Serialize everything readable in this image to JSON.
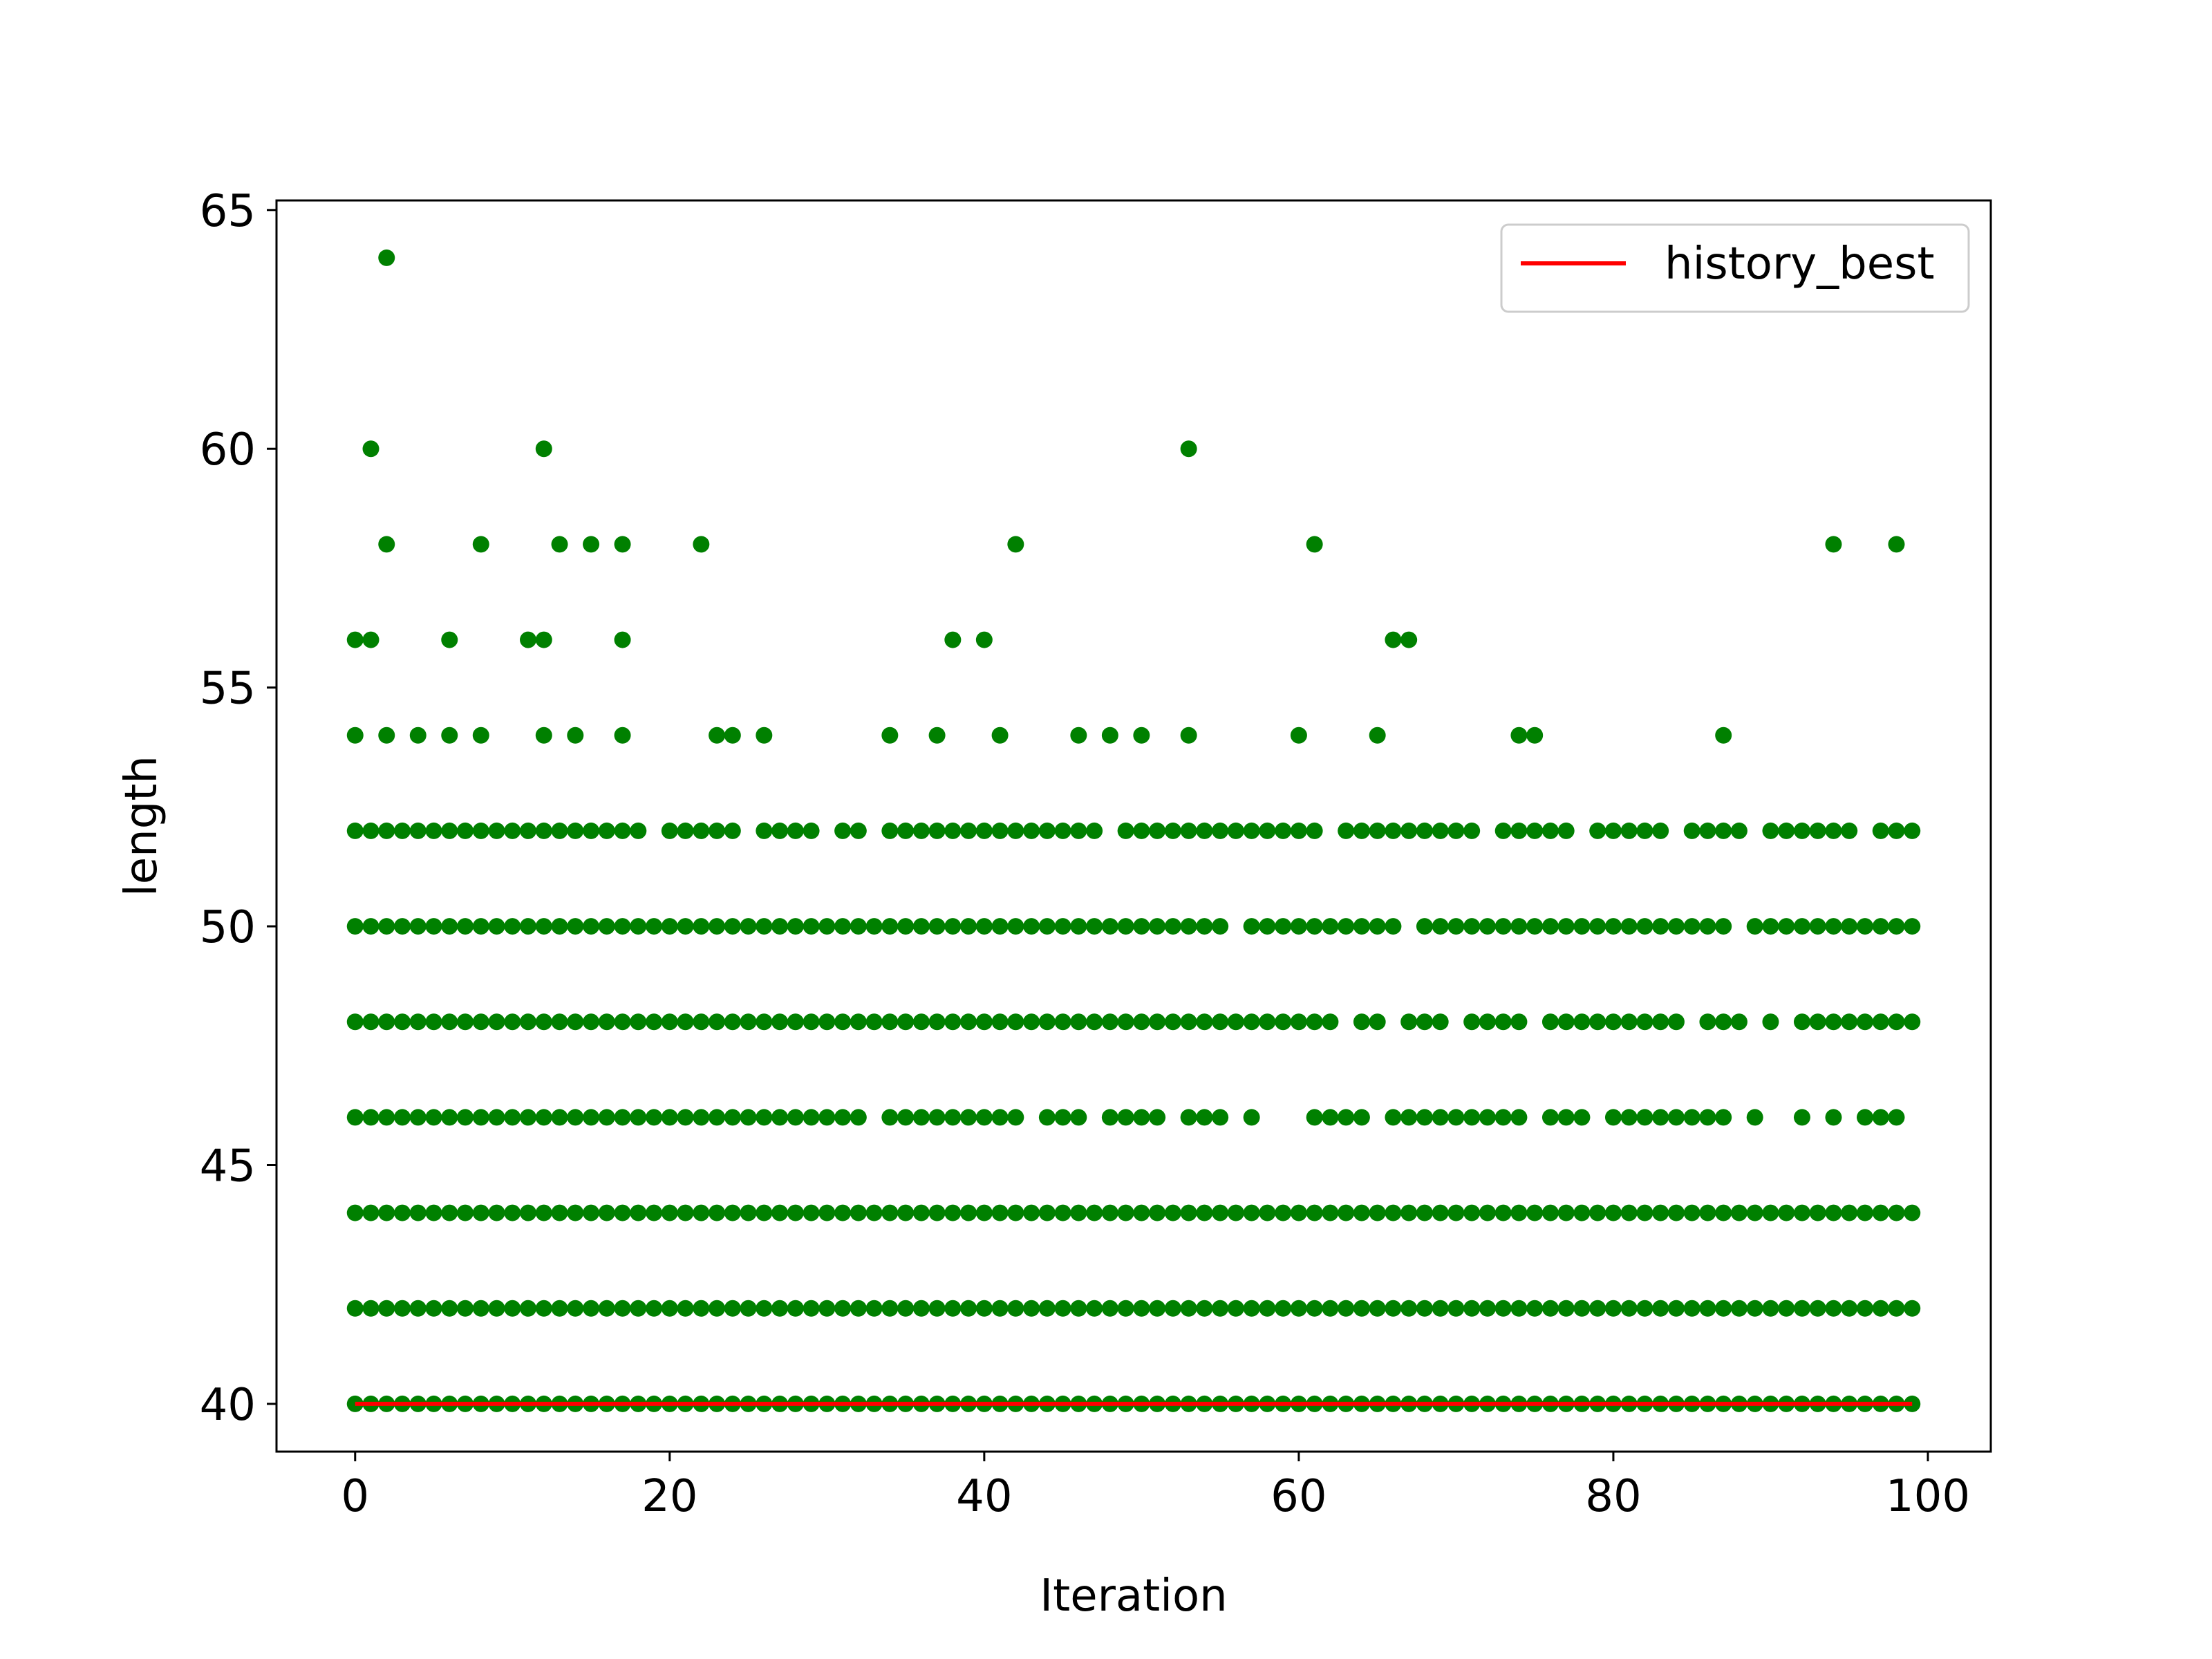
{
  "chart_data": {
    "type": "scatter",
    "title": "",
    "xlabel": "Iteration",
    "ylabel": "length",
    "xlim": [
      -5,
      104
    ],
    "ylim": [
      39.0,
      65.2
    ],
    "xticks": [
      "0",
      "20",
      "40",
      "60",
      "80",
      "100"
    ],
    "yticks": [
      "40",
      "45",
      "50",
      "55",
      "60",
      "65"
    ],
    "grid": false,
    "legend_position": "top-right",
    "legend": [
      {
        "label": "history_best",
        "color": "#ff0000",
        "kind": "line"
      }
    ],
    "series": [
      {
        "name": "history_best",
        "kind": "line",
        "color": "#ff0000",
        "x": [
          0,
          99
        ],
        "y": [
          40,
          40
        ]
      },
      {
        "kind": "scatter",
        "color": "#008000",
        "rows": [
          {
            "y": 40,
            "x": "0-99"
          },
          {
            "y": 42,
            "x": "0-99"
          },
          {
            "y": 44,
            "x": "0-99"
          },
          {
            "y": 46,
            "x": "0-32,34-42,44-46,48-51,53-55,57,61-64,66-74,76-78,80-86,87,89,92,94,96-98"
          },
          {
            "y": 48,
            "x": "0-62,64-65,67-69,71-74,76-84,86-88,90,92-99"
          },
          {
            "y": 50,
            "x": "0-55,57-66,68-87,89-99"
          },
          {
            "y": 52,
            "x": "0-18,20-24,26-29,31-32,34-47,49-61,63-71,73-77,79-83,85-88,90-95,97-99"
          },
          {
            "y": 54,
            "x": "0,2,4,6,8,12,14,17,23,24,26,34,37,41,46,48,50,53,60,65,74,75,87"
          },
          {
            "y": 56,
            "x": "0,1,6,11,12,17,38,40,66,67"
          },
          {
            "y": 58,
            "x": "2,8,13,15,17,22,42,61,94,98"
          },
          {
            "y": 60,
            "x": "1,12,53"
          },
          {
            "y": 64,
            "x": "2"
          }
        ]
      }
    ]
  }
}
